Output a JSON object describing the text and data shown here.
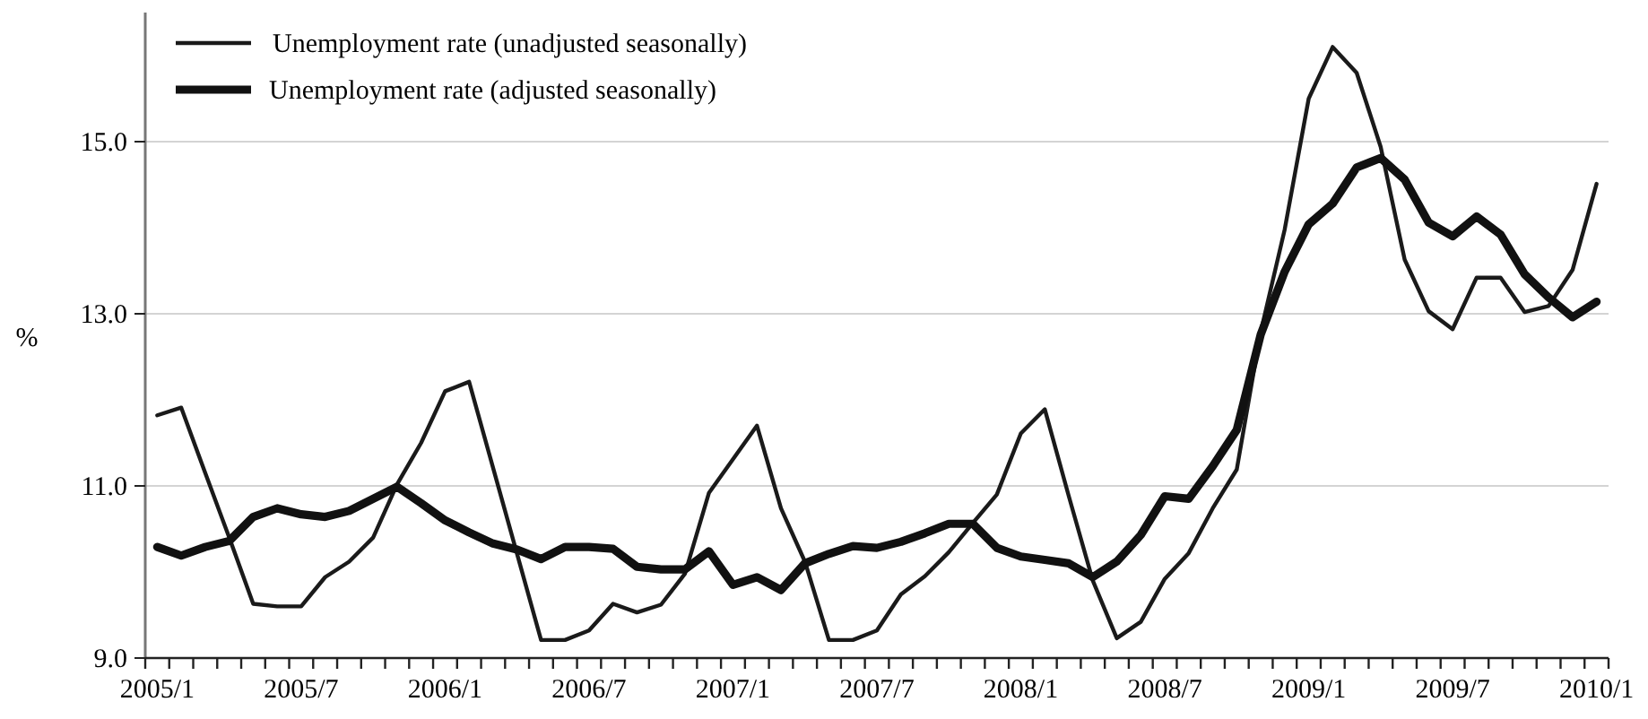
{
  "chart_data": {
    "type": "line",
    "ylabel": "%",
    "categories": [
      "2005/1",
      null,
      null,
      null,
      null,
      null,
      "2005/7",
      null,
      null,
      null,
      null,
      null,
      "2006/1",
      null,
      null,
      null,
      null,
      null,
      "2006/7",
      null,
      null,
      null,
      null,
      null,
      "2007/1",
      null,
      null,
      null,
      null,
      null,
      "2007/7",
      null,
      null,
      null,
      null,
      null,
      "2008/1",
      null,
      null,
      null,
      null,
      null,
      "2008/7",
      null,
      null,
      null,
      null,
      null,
      "2009/1",
      null,
      null,
      null,
      null,
      null,
      "2009/7",
      null,
      null,
      null,
      null,
      null,
      "2010/1"
    ],
    "series": [
      {
        "name": "Unemployment rate (unadjusted seasonally)",
        "color": "#1a1a1a",
        "values": [
          11.82,
          11.91,
          11.15,
          10.4,
          9.63,
          9.6,
          9.6,
          9.94,
          10.12,
          10.4,
          11.02,
          11.5,
          12.1,
          12.21,
          11.21,
          10.21,
          9.21,
          9.21,
          9.32,
          9.63,
          9.53,
          9.62,
          9.98,
          10.92,
          11.31,
          11.7,
          10.74,
          10.12,
          9.21,
          9.21,
          9.32,
          9.74,
          9.95,
          10.23,
          10.57,
          10.9,
          11.61,
          11.89,
          10.88,
          9.9,
          9.23,
          9.42,
          9.92,
          10.22,
          10.74,
          11.19,
          12.79,
          13.98,
          15.5,
          16.1,
          15.8,
          14.94,
          13.63,
          13.03,
          12.82,
          13.42,
          13.42,
          13.02,
          13.09,
          13.51,
          14.51
        ]
      },
      {
        "name": "Unemployment rate (adjusted seasonally)",
        "color": "#111111",
        "values": [
          10.29,
          10.19,
          10.29,
          10.36,
          10.64,
          10.74,
          10.67,
          10.64,
          10.71,
          10.85,
          10.99,
          10.8,
          10.6,
          10.46,
          10.33,
          10.26,
          10.15,
          10.29,
          10.29,
          10.27,
          10.06,
          10.03,
          10.03,
          10.24,
          9.85,
          9.94,
          9.79,
          10.1,
          10.21,
          10.3,
          10.28,
          10.35,
          10.45,
          10.56,
          10.56,
          10.28,
          10.18,
          10.14,
          10.1,
          9.94,
          10.12,
          10.43,
          10.88,
          10.85,
          11.23,
          11.65,
          12.76,
          13.49,
          14.04,
          14.28,
          14.7,
          14.81,
          14.56,
          14.06,
          13.9,
          14.13,
          13.92,
          13.46,
          13.19,
          12.96,
          13.14
        ]
      }
    ],
    "ylim": [
      9,
      16.5
    ],
    "yticks": [
      {
        "value": 9,
        "label": "9.0"
      },
      {
        "value": 11,
        "label": "11.0"
      },
      {
        "value": 13,
        "label": "13.0"
      },
      {
        "value": 15,
        "label": "15.0"
      }
    ],
    "grid": "y",
    "legend": "top left",
    "marker": "none",
    "line_style": "solid"
  }
}
